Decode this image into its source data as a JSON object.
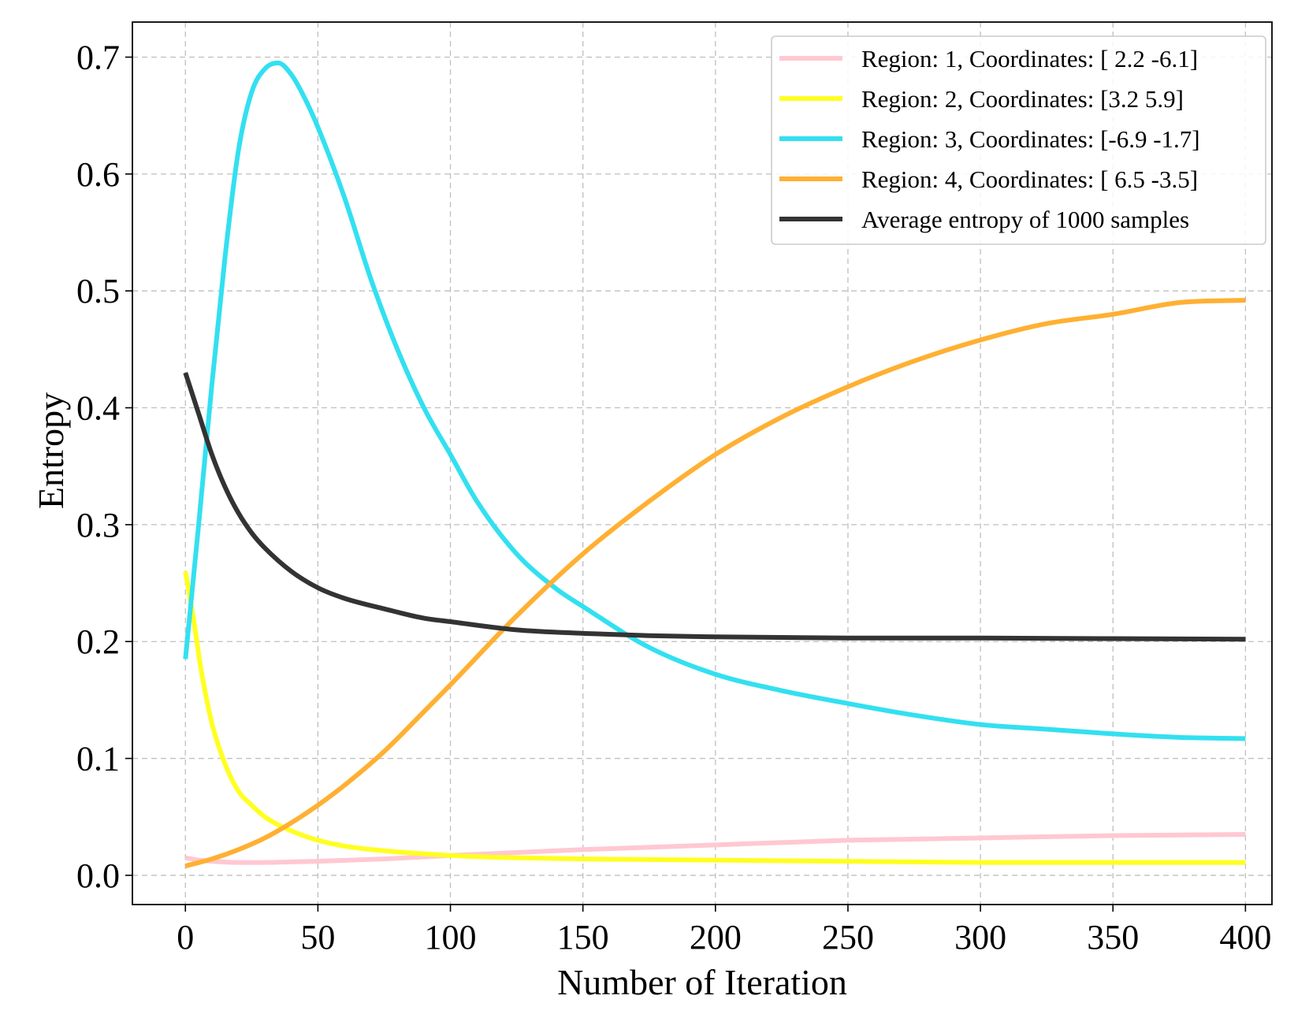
{
  "chart_data": {
    "type": "line",
    "title": "",
    "xlabel": "Number of Iteration",
    "ylabel": "Entropy",
    "xlim": [
      -20,
      410
    ],
    "ylim": [
      -0.025,
      0.73
    ],
    "xticks": [
      0,
      50,
      100,
      150,
      200,
      250,
      300,
      350,
      400
    ],
    "yticks": [
      0.0,
      0.1,
      0.2,
      0.3,
      0.4,
      0.5,
      0.6,
      0.7
    ],
    "ytick_labels": [
      "0.0",
      "0.1",
      "0.2",
      "0.3",
      "0.4",
      "0.5",
      "0.6",
      "0.7"
    ],
    "grid": true,
    "legend_position": "top-right",
    "series": [
      {
        "name": "Region: 1, Coordinates: [ 2.2 -6.1]",
        "color": "#ffc8d2",
        "x": [
          0,
          5,
          10,
          20,
          30,
          40,
          50,
          75,
          100,
          150,
          200,
          250,
          300,
          350,
          400
        ],
        "y": [
          0.015,
          0.013,
          0.012,
          0.011,
          0.011,
          0.0115,
          0.012,
          0.014,
          0.017,
          0.022,
          0.026,
          0.03,
          0.032,
          0.034,
          0.035
        ]
      },
      {
        "name": "Region: 2, Coordinates: [3.2 5.9]",
        "color": "#ffff22",
        "x": [
          0,
          3,
          6,
          10,
          15,
          20,
          25,
          30,
          40,
          50,
          60,
          75,
          100,
          125,
          150,
          200,
          250,
          300,
          350,
          400
        ],
        "y": [
          0.26,
          0.22,
          0.175,
          0.13,
          0.095,
          0.072,
          0.06,
          0.05,
          0.038,
          0.03,
          0.025,
          0.021,
          0.017,
          0.015,
          0.014,
          0.013,
          0.012,
          0.011,
          0.011,
          0.011
        ]
      },
      {
        "name": "Region: 3, Coordinates: [-6.9 -1.7]",
        "color": "#33e0f0",
        "x": [
          0,
          5,
          10,
          15,
          20,
          25,
          30,
          35,
          40,
          45,
          50,
          60,
          70,
          80,
          90,
          100,
          110,
          125,
          140,
          150,
          175,
          200,
          225,
          250,
          275,
          300,
          325,
          350,
          375,
          400
        ],
        "y": [
          0.185,
          0.3,
          0.42,
          0.53,
          0.62,
          0.67,
          0.69,
          0.695,
          0.685,
          0.665,
          0.64,
          0.58,
          0.51,
          0.45,
          0.4,
          0.36,
          0.32,
          0.275,
          0.245,
          0.23,
          0.195,
          0.172,
          0.158,
          0.147,
          0.137,
          0.129,
          0.125,
          0.121,
          0.118,
          0.117
        ]
      },
      {
        "name": "Region: 4, Coordinates: [ 6.5 -3.5]",
        "color": "#ffb033",
        "x": [
          0,
          10,
          20,
          30,
          40,
          50,
          60,
          75,
          90,
          100,
          125,
          150,
          175,
          200,
          225,
          250,
          275,
          300,
          325,
          350,
          375,
          400
        ],
        "y": [
          0.008,
          0.014,
          0.022,
          0.032,
          0.045,
          0.06,
          0.077,
          0.106,
          0.14,
          0.163,
          0.222,
          0.275,
          0.32,
          0.36,
          0.392,
          0.418,
          0.44,
          0.458,
          0.472,
          0.48,
          0.49,
          0.492
        ]
      },
      {
        "name": "Average entropy of 1000 samples",
        "color": "#333333",
        "x": [
          0,
          5,
          10,
          15,
          20,
          25,
          30,
          40,
          50,
          60,
          75,
          90,
          100,
          125,
          150,
          175,
          200,
          250,
          300,
          350,
          400
        ],
        "y": [
          0.43,
          0.395,
          0.36,
          0.332,
          0.31,
          0.293,
          0.28,
          0.26,
          0.246,
          0.237,
          0.228,
          0.22,
          0.217,
          0.21,
          0.207,
          0.205,
          0.204,
          0.203,
          0.203,
          0.2025,
          0.202
        ]
      }
    ]
  }
}
